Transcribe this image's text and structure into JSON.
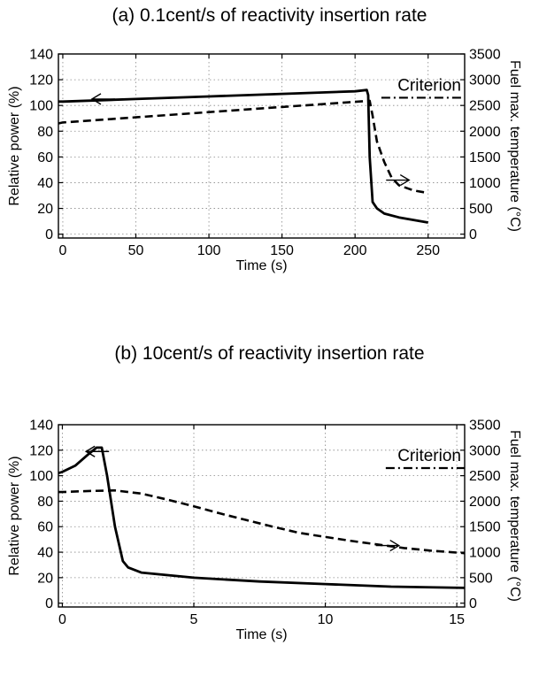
{
  "chart_data": [
    {
      "type": "line",
      "title": "(a) 0.1cent/s of reactivity insertion rate",
      "xlabel": "Time (s)",
      "ylabel": "Relative power (%)",
      "y2label": "Fuel max. temperature (°C)",
      "xlim": [
        -3,
        275
      ],
      "ylim": [
        -3,
        140
      ],
      "y2lim": [
        -75,
        3500
      ],
      "xticks": [
        0,
        50,
        100,
        150,
        200,
        250
      ],
      "yticks": [
        0,
        20,
        40,
        60,
        80,
        100,
        120,
        140
      ],
      "y2ticks": [
        0,
        500,
        1000,
        1500,
        2000,
        2500,
        3000,
        3500
      ],
      "grid": true,
      "annotation": "Criterion",
      "criterion_value": 2650,
      "criterion_x": [
        218,
        275
      ],
      "series": [
        {
          "axis": "left",
          "style": "solid",
          "x": [
            -3,
            0,
            50,
            100,
            150,
            200,
            208,
            209,
            210,
            212,
            215,
            220,
            230,
            240,
            250
          ],
          "y": [
            103,
            103,
            105,
            107,
            109,
            111,
            112,
            108,
            60,
            25,
            20,
            16,
            13,
            11,
            9
          ]
        },
        {
          "axis": "right",
          "style": "dashed",
          "x": [
            -3,
            0,
            50,
            100,
            150,
            200,
            210,
            212,
            215,
            220,
            225,
            230,
            240,
            250
          ],
          "y": [
            2150,
            2170,
            2270,
            2370,
            2470,
            2570,
            2590,
            2300,
            1800,
            1400,
            1100,
            950,
            850,
            800
          ]
        }
      ],
      "arrows": [
        {
          "x": 20,
          "y": 105,
          "dir": "left"
        },
        {
          "x": 237,
          "y": 1050,
          "dir": "right"
        }
      ]
    },
    {
      "type": "line",
      "title": "(b) 10cent/s of reactivity insertion rate",
      "xlabel": "Time (s)",
      "ylabel": "Relative power (%)",
      "y2label": "Fuel max. temperature (°C)",
      "xlim": [
        -0.15,
        15.3
      ],
      "ylim": [
        -3,
        140
      ],
      "y2lim": [
        -75,
        3500
      ],
      "xticks": [
        0,
        5,
        10,
        15
      ],
      "yticks": [
        0,
        20,
        40,
        60,
        80,
        100,
        120,
        140
      ],
      "y2ticks": [
        0,
        500,
        1000,
        1500,
        2000,
        2500,
        3000,
        3500
      ],
      "grid": true,
      "annotation": "Criterion",
      "criterion_value": 2650,
      "criterion_x": [
        12.3,
        15.3
      ],
      "series": [
        {
          "axis": "left",
          "style": "solid",
          "x": [
            -0.15,
            0,
            0.5,
            1.0,
            1.3,
            1.5,
            1.7,
            2.0,
            2.3,
            2.5,
            3,
            4,
            5,
            7.5,
            10,
            12.5,
            15.3
          ],
          "y": [
            102,
            103,
            108,
            117,
            122,
            122,
            100,
            60,
            33,
            28,
            24,
            22,
            20,
            17,
            15,
            13,
            12
          ]
        },
        {
          "axis": "right",
          "style": "dashed",
          "x": [
            -0.15,
            0,
            1,
            2,
            3,
            4,
            5,
            6,
            7,
            8,
            9,
            10,
            11,
            12,
            13,
            14,
            15.3
          ],
          "y": [
            2180,
            2180,
            2200,
            2210,
            2150,
            2030,
            1900,
            1760,
            1630,
            1500,
            1380,
            1300,
            1220,
            1150,
            1080,
            1030,
            980
          ]
        }
      ],
      "arrows": [
        {
          "x": 0.9,
          "y": 119,
          "dir": "left"
        },
        {
          "x": 12.8,
          "y": 1130,
          "dir": "right"
        }
      ]
    }
  ]
}
